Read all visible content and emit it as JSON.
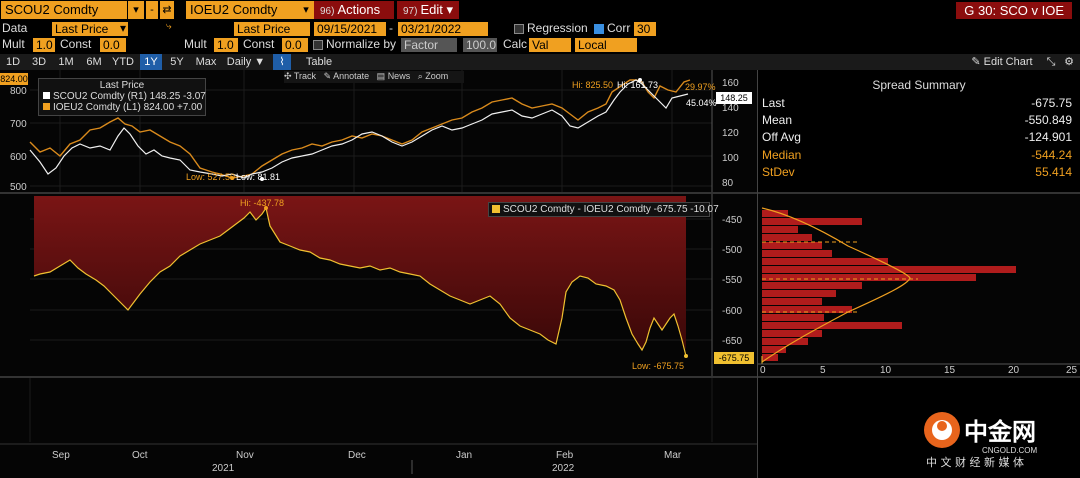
{
  "toolbar": {
    "ticker1": "SCOU2 Comdty",
    "ticker2": "IOEU2 Comdty",
    "actions_num": "96)",
    "actions_label": "Actions",
    "edit_num": "97)",
    "edit_label": "Edit",
    "title": "G 30: SCO v IOE"
  },
  "controls": {
    "data_label": "Data",
    "data_value1": "Last Price",
    "data_value2": "Last Price",
    "date_from": "09/15/2021",
    "date_to": "03/21/2022",
    "regression_label": "Regression",
    "corr_label": "Corr",
    "corr_value": "30",
    "mult_label": "Mult",
    "mult_value1": "1.0",
    "const_label": "Const",
    "const_value1": "0.0",
    "mult_value2": "1.0",
    "const_value2": "0.0",
    "normalize_label": "Normalize by",
    "factor_value": "Factor",
    "factor_num": "100.0",
    "calc_label": "Calc",
    "calc_value": "Val",
    "local_value": "Local"
  },
  "timeframes": [
    "1D",
    "3D",
    "1M",
    "6M",
    "YTD",
    "1Y",
    "5Y",
    "Max"
  ],
  "timeframe_selected": "1Y",
  "period_label": "Daily",
  "table_label": "Table",
  "tools": {
    "track": "Track",
    "annotate": "Annotate",
    "news": "News",
    "zoom": "Zoom"
  },
  "edit_chart_label": "Edit Chart",
  "top_chart": {
    "price_tag_left": "824.00",
    "legend_header": "Last Price",
    "series1_label": "SCOU2 Comdty  (R1) 148.25  -3.07",
    "series2_label": "IOEU2 Comdty  (L1) 824.00  +7.00",
    "left_ticks": [
      "800",
      "700",
      "600",
      "500"
    ],
    "right_ticks": [
      "160",
      "140",
      "120",
      "100",
      "80"
    ],
    "hi_orange": "Hi: 825.50",
    "hi_white": "Hi: 161.73",
    "low_orange": "Low: 527.50",
    "low_white": "Low: 81.81",
    "pct_orange": "29.97%",
    "pct_white": "45.04%",
    "last_white_tag": "148.25"
  },
  "spread_chart": {
    "legend": "SCOU2 Comdty - IOEU2 Comdty  -675.75   -10.07",
    "hi": "Hi: -437.78",
    "low": "Low: -675.75",
    "last_tag": "-675.75",
    "y_ticks": [
      "-450",
      "-500",
      "-550",
      "-600",
      "-650"
    ]
  },
  "x_axis": {
    "months": [
      "Sep",
      "Oct",
      "Nov",
      "Dec",
      "Jan",
      "Feb",
      "Mar"
    ],
    "years": [
      "2021",
      "2022"
    ]
  },
  "summary": {
    "title": "Spread Summary",
    "rows": [
      {
        "k": "Last",
        "v": "-675.75"
      },
      {
        "k": "Mean",
        "v": "-550.849"
      },
      {
        "k": "Off Avg",
        "v": "-124.901"
      },
      {
        "k": "Median",
        "v": "-544.24"
      },
      {
        "k": "StDev",
        "v": "55.414"
      }
    ]
  },
  "histogram": {
    "x_ticks": [
      "0",
      "5",
      "10",
      "15",
      "20",
      "25"
    ]
  },
  "logo": {
    "brand": "中金网",
    "domain": "CNGOLD.COM",
    "tagline": "中 文 财 经 新 媒 体"
  },
  "colors": {
    "orange": "#f0a020",
    "darkred": "#8b0d0d",
    "blue": "#1f5ea8"
  }
}
